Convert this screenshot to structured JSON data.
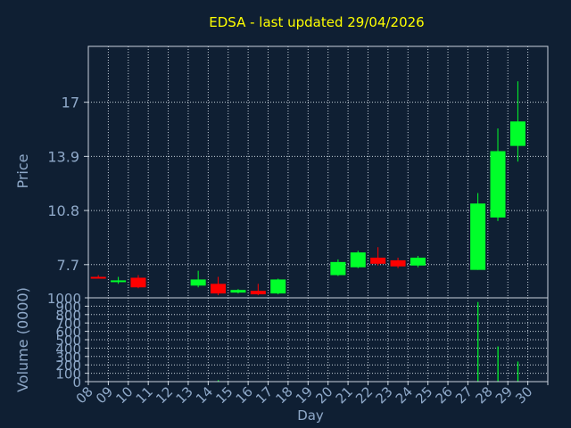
{
  "title": "EDSA - last updated 29/04/2026",
  "colors": {
    "background": "#0f1f33",
    "title": "#ffff00",
    "axis_text": "#8fa9c9",
    "frame": "#c8d2dc",
    "grid": "#c8d2dc",
    "up": "#00ff2a",
    "down": "#ff0000"
  },
  "chart_data": [
    {
      "type": "candlestick",
      "title": "EDSA - last updated 29/04/2026",
      "xlabel": "",
      "ylabel": "Price",
      "x_ticks": [
        "08",
        "09",
        "10",
        "11",
        "12",
        "13",
        "14",
        "15",
        "16",
        "17",
        "18",
        "19",
        "20",
        "21",
        "22",
        "23",
        "24",
        "25",
        "26",
        "27",
        "28",
        "29",
        "30"
      ],
      "y_ticks": [
        7.7,
        10.8,
        13.9,
        17
      ],
      "ylim": [
        5.8,
        20.2
      ],
      "grid": true,
      "candles": [
        {
          "day": "08",
          "open": 7.0,
          "high": 7.1,
          "low": 6.9,
          "close": 6.9
        },
        {
          "day": "09",
          "open": 6.7,
          "high": 7.0,
          "low": 6.6,
          "close": 6.8
        },
        {
          "day": "10",
          "open": 6.95,
          "high": 7.1,
          "low": 6.35,
          "close": 6.4
        },
        {
          "day": "13",
          "open": 6.5,
          "high": 7.35,
          "low": 6.4,
          "close": 6.85
        },
        {
          "day": "14",
          "open": 6.6,
          "high": 7.0,
          "low": 5.95,
          "close": 6.05
        },
        {
          "day": "15",
          "open": 6.1,
          "high": 6.3,
          "low": 6.05,
          "close": 6.25
        },
        {
          "day": "16",
          "open": 6.2,
          "high": 6.6,
          "low": 5.95,
          "close": 6.0
        },
        {
          "day": "17",
          "open": 6.05,
          "high": 6.9,
          "low": 6.0,
          "close": 6.85
        },
        {
          "day": "20",
          "open": 7.1,
          "high": 8.0,
          "low": 7.05,
          "close": 7.85
        },
        {
          "day": "21",
          "open": 7.55,
          "high": 8.5,
          "low": 7.5,
          "close": 8.4
        },
        {
          "day": "22",
          "open": 8.1,
          "high": 8.7,
          "low": 7.65,
          "close": 7.75
        },
        {
          "day": "23",
          "open": 7.95,
          "high": 8.1,
          "low": 7.5,
          "close": 7.6
        },
        {
          "day": "24",
          "open": 7.65,
          "high": 8.2,
          "low": 7.55,
          "close": 8.1
        },
        {
          "day": "27",
          "open": 7.4,
          "high": 11.8,
          "low": 7.4,
          "close": 11.2
        },
        {
          "day": "28",
          "open": 10.4,
          "high": 15.5,
          "low": 10.2,
          "close": 14.2
        },
        {
          "day": "29",
          "open": 14.5,
          "high": 18.2,
          "low": 13.6,
          "close": 15.9
        }
      ]
    },
    {
      "type": "bar",
      "title": "",
      "xlabel": "Day",
      "ylabel": "Volume (0000)",
      "categories": [
        "08",
        "09",
        "10",
        "11",
        "12",
        "13",
        "14",
        "15",
        "16",
        "17",
        "18",
        "19",
        "20",
        "21",
        "22",
        "23",
        "24",
        "25",
        "26",
        "27",
        "28",
        "29",
        "30"
      ],
      "values": [
        0,
        0,
        0,
        0,
        0,
        0,
        18,
        0,
        0,
        0,
        0,
        0,
        0,
        0,
        0,
        0,
        0,
        0,
        0,
        950,
        420,
        240,
        0
      ],
      "y_ticks": [
        0,
        100,
        200,
        300,
        400,
        500,
        600,
        700,
        800,
        900,
        1000
      ],
      "ylim": [
        0,
        1000
      ],
      "grid": true
    }
  ]
}
